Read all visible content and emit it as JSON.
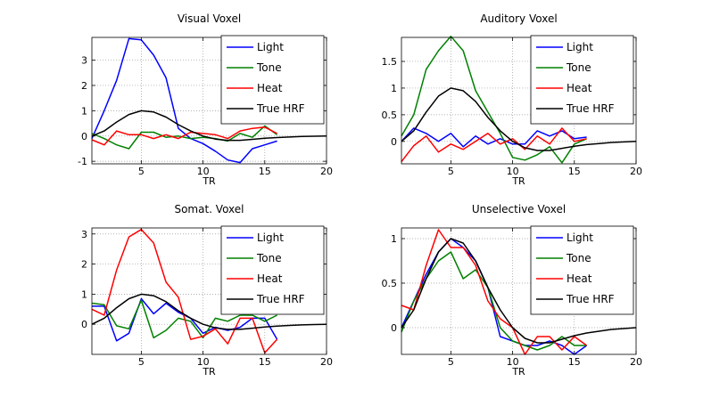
{
  "chart_data": [
    {
      "type": "line",
      "title": "Visual Voxel",
      "xlabel": "TR",
      "ylabel": "",
      "xlim": [
        1,
        20
      ],
      "ylim": [
        -1.1,
        3.9
      ],
      "xticks": [
        5,
        10,
        15,
        20
      ],
      "yticks": [
        -1,
        0,
        1,
        2,
        3
      ],
      "grid": true,
      "legend_position": "top-right",
      "series": [
        {
          "name": "Light",
          "color": "#0000ff",
          "x": [
            1,
            2,
            3,
            4,
            5,
            6,
            7,
            8,
            9,
            10,
            11,
            12,
            13,
            14,
            15,
            16
          ],
          "y": [
            -0.1,
            1.0,
            2.2,
            3.85,
            3.8,
            3.2,
            2.3,
            0.3,
            -0.1,
            -0.3,
            -0.6,
            -0.95,
            -1.05,
            -0.5,
            -0.35,
            -0.2
          ]
        },
        {
          "name": "Tone",
          "color": "#008000",
          "x": [
            1,
            2,
            3,
            4,
            5,
            6,
            7,
            8,
            9,
            10,
            11,
            12,
            13,
            14,
            15,
            16
          ],
          "y": [
            0.1,
            -0.1,
            -0.35,
            -0.5,
            0.15,
            0.15,
            -0.05,
            0.0,
            -0.1,
            -0.05,
            -0.1,
            -0.2,
            0.1,
            -0.05,
            0.4,
            0.05
          ]
        },
        {
          "name": "Heat",
          "color": "#ff0000",
          "x": [
            1,
            2,
            3,
            4,
            5,
            6,
            7,
            8,
            9,
            10,
            11,
            12,
            13,
            14,
            15,
            16
          ],
          "y": [
            -0.15,
            -0.35,
            0.2,
            0.05,
            0.05,
            -0.1,
            0.05,
            -0.1,
            0.15,
            0.1,
            0.05,
            -0.1,
            0.2,
            0.3,
            0.35,
            0.1
          ]
        },
        {
          "name": "True HRF",
          "color": "#000000",
          "x": [
            1,
            2,
            3,
            4,
            5,
            6,
            7,
            8,
            9,
            10,
            11,
            12,
            13,
            14,
            15,
            16,
            17,
            18,
            19,
            20
          ],
          "y": [
            0.0,
            0.2,
            0.55,
            0.85,
            1.0,
            0.95,
            0.75,
            0.45,
            0.2,
            0.0,
            -0.12,
            -0.17,
            -0.17,
            -0.13,
            -0.09,
            -0.06,
            -0.04,
            -0.02,
            -0.01,
            0.0
          ]
        }
      ]
    },
    {
      "type": "line",
      "title": "Auditory Voxel",
      "xlabel": "TR",
      "ylabel": "",
      "xlim": [
        1,
        20
      ],
      "ylim": [
        -0.42,
        1.95
      ],
      "xticks": [
        5,
        10,
        15,
        20
      ],
      "yticks": [
        0,
        0.5,
        1,
        1.5
      ],
      "grid": true,
      "legend_position": "top-right",
      "series": [
        {
          "name": "Light",
          "color": "#0000ff",
          "x": [
            1,
            2,
            3,
            4,
            5,
            6,
            7,
            8,
            9,
            10,
            11,
            12,
            13,
            14,
            15,
            16
          ],
          "y": [
            0.0,
            0.25,
            0.15,
            0.0,
            0.15,
            -0.1,
            0.1,
            -0.05,
            0.05,
            -0.05,
            -0.05,
            0.2,
            0.1,
            0.2,
            0.05,
            0.08
          ]
        },
        {
          "name": "Tone",
          "color": "#008000",
          "x": [
            1,
            2,
            3,
            4,
            5,
            6,
            7,
            8,
            9,
            10,
            11,
            12,
            13,
            14,
            15,
            16
          ],
          "y": [
            0.1,
            0.5,
            1.35,
            1.7,
            1.97,
            1.7,
            0.95,
            0.55,
            0.15,
            -0.3,
            -0.35,
            -0.25,
            -0.1,
            -0.4,
            -0.05,
            0.05
          ]
        },
        {
          "name": "Heat",
          "color": "#ff0000",
          "x": [
            1,
            2,
            3,
            4,
            5,
            6,
            7,
            8,
            9,
            10,
            11,
            12,
            13,
            14,
            15,
            16
          ],
          "y": [
            -0.38,
            -0.08,
            0.1,
            -0.2,
            -0.05,
            -0.15,
            0.0,
            0.15,
            -0.05,
            0.05,
            -0.15,
            0.1,
            -0.05,
            0.25,
            0.0,
            0.05
          ]
        },
        {
          "name": "True HRF",
          "color": "#000000",
          "x": [
            1,
            2,
            3,
            4,
            5,
            6,
            7,
            8,
            9,
            10,
            11,
            12,
            13,
            14,
            15,
            16,
            17,
            18,
            19,
            20
          ],
          "y": [
            0.0,
            0.2,
            0.55,
            0.85,
            1.0,
            0.95,
            0.75,
            0.45,
            0.2,
            0.0,
            -0.12,
            -0.17,
            -0.17,
            -0.13,
            -0.09,
            -0.06,
            -0.04,
            -0.02,
            -0.01,
            0.0
          ]
        }
      ]
    },
    {
      "type": "line",
      "title": "Somat. Voxel",
      "xlabel": "TR",
      "ylabel": "",
      "xlim": [
        1,
        20
      ],
      "ylim": [
        -1.0,
        3.2
      ],
      "xticks": [
        5,
        10,
        15,
        20
      ],
      "yticks": [
        0,
        1,
        2,
        3
      ],
      "grid": true,
      "legend_position": "top-right",
      "series": [
        {
          "name": "Light",
          "color": "#0000ff",
          "x": [
            1,
            2,
            3,
            4,
            5,
            6,
            7,
            8,
            9,
            10,
            11,
            12,
            13,
            14,
            15,
            16
          ],
          "y": [
            0.6,
            0.6,
            -0.55,
            -0.3,
            0.85,
            0.35,
            0.7,
            0.4,
            0.2,
            -0.3,
            -0.1,
            -0.2,
            -0.1,
            0.2,
            0.2,
            -0.5
          ]
        },
        {
          "name": "Tone",
          "color": "#008000",
          "x": [
            1,
            2,
            3,
            4,
            5,
            6,
            7,
            8,
            9,
            10,
            11,
            12,
            13,
            14,
            15,
            16
          ],
          "y": [
            0.7,
            0.65,
            -0.05,
            -0.15,
            0.8,
            -0.45,
            -0.2,
            0.2,
            0.1,
            -0.45,
            0.2,
            0.1,
            0.3,
            0.3,
            0.1,
            0.3
          ]
        },
        {
          "name": "Heat",
          "color": "#ff0000",
          "x": [
            1,
            2,
            3,
            4,
            5,
            6,
            7,
            8,
            9,
            10,
            11,
            12,
            13,
            14,
            15,
            16
          ],
          "y": [
            0.5,
            0.3,
            1.8,
            2.9,
            3.15,
            2.7,
            1.4,
            0.9,
            -0.5,
            -0.4,
            -0.15,
            -0.65,
            0.2,
            0.2,
            -0.95,
            -0.5
          ]
        },
        {
          "name": "True HRF",
          "color": "#000000",
          "x": [
            1,
            2,
            3,
            4,
            5,
            6,
            7,
            8,
            9,
            10,
            11,
            12,
            13,
            14,
            15,
            16,
            17,
            18,
            19,
            20
          ],
          "y": [
            0.0,
            0.2,
            0.55,
            0.85,
            1.0,
            0.95,
            0.75,
            0.45,
            0.2,
            0.0,
            -0.12,
            -0.17,
            -0.17,
            -0.13,
            -0.09,
            -0.06,
            -0.04,
            -0.02,
            -0.01,
            0.0
          ]
        }
      ]
    },
    {
      "type": "line",
      "title": "Unselective Voxel",
      "xlabel": "TR",
      "ylabel": "",
      "xlim": [
        1,
        20
      ],
      "ylim": [
        -0.3,
        1.12
      ],
      "xticks": [
        5,
        10,
        15,
        20
      ],
      "yticks": [
        0,
        0.5,
        1
      ],
      "grid": true,
      "legend_position": "top-right",
      "series": [
        {
          "name": "Light",
          "color": "#0000ff",
          "x": [
            1,
            2,
            3,
            4,
            5,
            6,
            7,
            8,
            9,
            10,
            11,
            12,
            13,
            14,
            15,
            16
          ],
          "y": [
            0.0,
            0.3,
            0.6,
            0.85,
            1.0,
            0.9,
            0.75,
            0.45,
            -0.1,
            -0.15,
            -0.2,
            -0.2,
            -0.15,
            -0.2,
            -0.3,
            -0.2
          ]
        },
        {
          "name": "Tone",
          "color": "#008000",
          "x": [
            1,
            2,
            3,
            4,
            5,
            6,
            7,
            8,
            9,
            10,
            11,
            12,
            13,
            14,
            15,
            16
          ],
          "y": [
            -0.05,
            0.3,
            0.55,
            0.75,
            0.85,
            0.55,
            0.65,
            0.45,
            0.0,
            -0.15,
            -0.2,
            -0.25,
            -0.2,
            -0.1,
            -0.2,
            -0.2
          ]
        },
        {
          "name": "Heat",
          "color": "#ff0000",
          "x": [
            1,
            2,
            3,
            4,
            5,
            6,
            7,
            8,
            9,
            10,
            11,
            12,
            13,
            14,
            15,
            16
          ],
          "y": [
            0.25,
            0.2,
            0.7,
            1.1,
            0.9,
            0.9,
            0.7,
            0.3,
            0.1,
            0.0,
            -0.3,
            -0.1,
            -0.1,
            -0.25,
            -0.1,
            -0.2
          ]
        },
        {
          "name": "True HRF",
          "color": "#000000",
          "x": [
            1,
            2,
            3,
            4,
            5,
            6,
            7,
            8,
            9,
            10,
            11,
            12,
            13,
            14,
            15,
            16,
            17,
            18,
            19,
            20
          ],
          "y": [
            0.0,
            0.2,
            0.55,
            0.85,
            1.0,
            0.95,
            0.75,
            0.45,
            0.2,
            0.0,
            -0.12,
            -0.17,
            -0.17,
            -0.13,
            -0.09,
            -0.06,
            -0.04,
            -0.02,
            -0.01,
            0.0
          ]
        }
      ]
    }
  ]
}
